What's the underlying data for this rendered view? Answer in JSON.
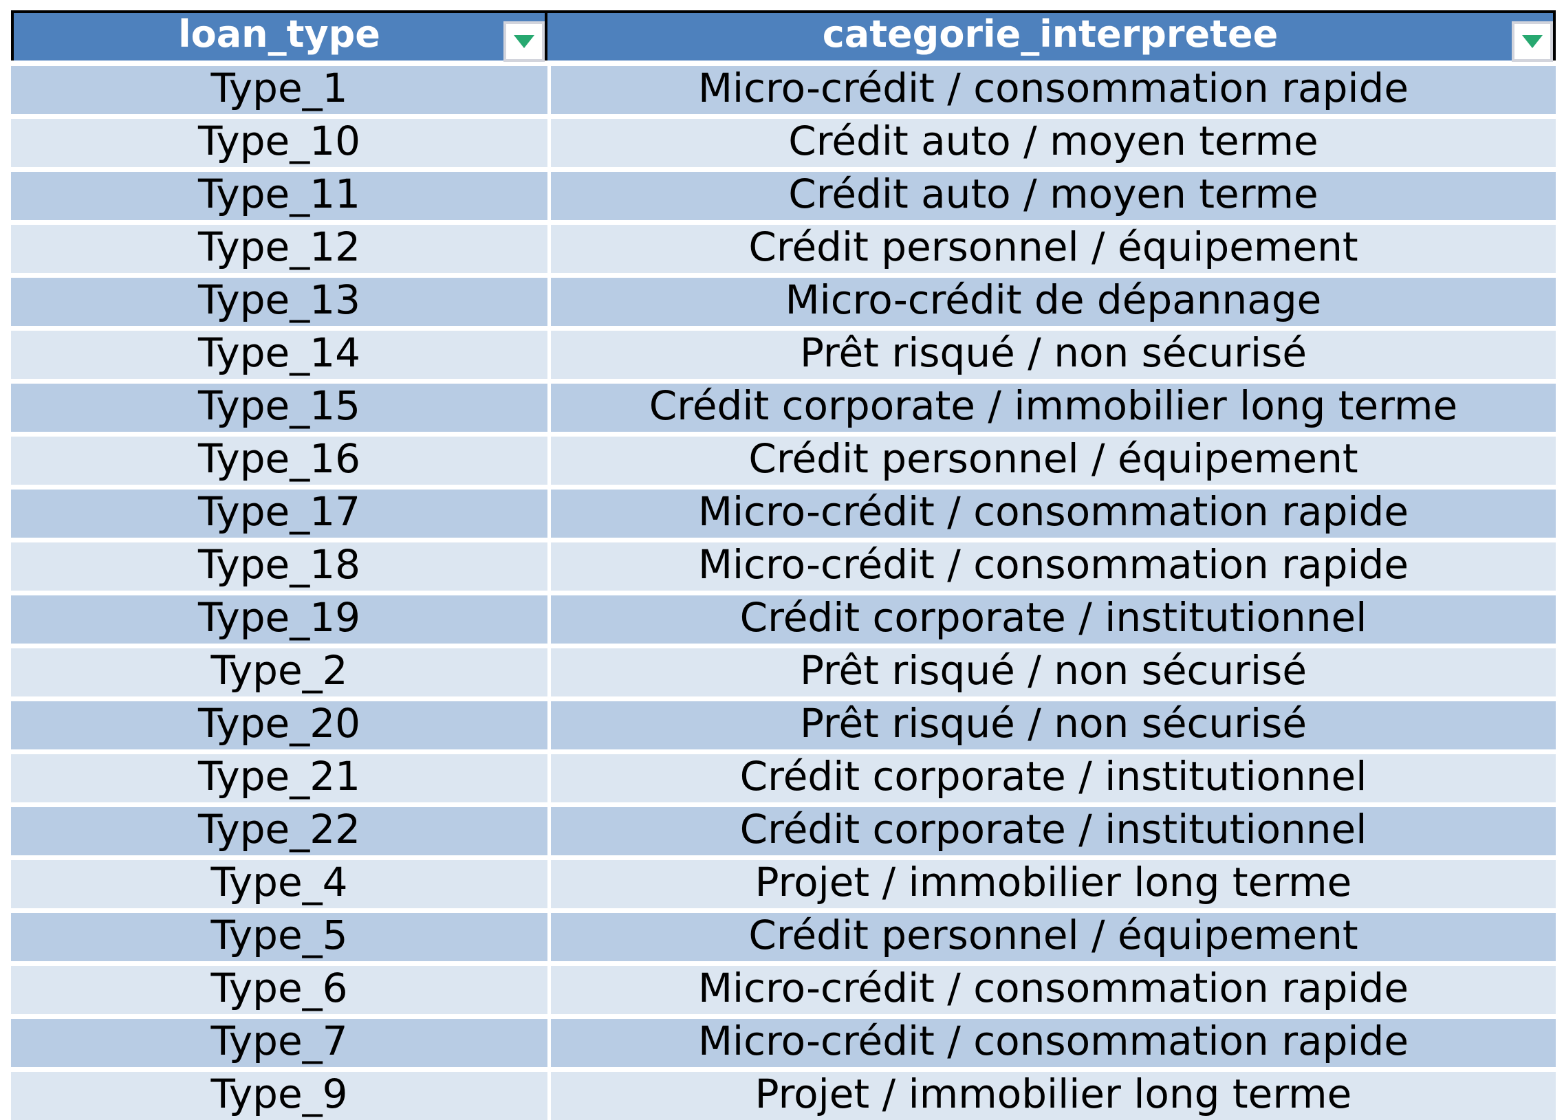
{
  "colors": {
    "header_bg": "#4E81BD",
    "header_text": "#FFFFFF",
    "row_odd": "#B8CCE4",
    "row_even": "#DCE6F1",
    "cell_text": "#000000",
    "filter_arrow_green": "#27A870",
    "table_border": "#000000"
  },
  "table": {
    "headers": [
      {
        "label": "loan_type",
        "filter_icon": "filter-dropdown-icon"
      },
      {
        "label": "categorie_interpretee",
        "filter_icon": "filter-dropdown-icon"
      }
    ],
    "rows": [
      {
        "loan_type": "Type_1",
        "categorie_interpretee": "Micro-crédit / consommation rapide"
      },
      {
        "loan_type": "Type_10",
        "categorie_interpretee": "Crédit auto / moyen terme"
      },
      {
        "loan_type": "Type_11",
        "categorie_interpretee": "Crédit auto / moyen terme"
      },
      {
        "loan_type": "Type_12",
        "categorie_interpretee": "Crédit personnel / équipement"
      },
      {
        "loan_type": "Type_13",
        "categorie_interpretee": "Micro-crédit de dépannage"
      },
      {
        "loan_type": "Type_14",
        "categorie_interpretee": "Prêt risqué / non sécurisé"
      },
      {
        "loan_type": "Type_15",
        "categorie_interpretee": "Crédit corporate / immobilier long terme"
      },
      {
        "loan_type": "Type_16",
        "categorie_interpretee": "Crédit personnel / équipement"
      },
      {
        "loan_type": "Type_17",
        "categorie_interpretee": "Micro-crédit / consommation rapide"
      },
      {
        "loan_type": "Type_18",
        "categorie_interpretee": "Micro-crédit / consommation rapide"
      },
      {
        "loan_type": "Type_19",
        "categorie_interpretee": "Crédit corporate / institutionnel"
      },
      {
        "loan_type": "Type_2",
        "categorie_interpretee": "Prêt risqué / non sécurisé"
      },
      {
        "loan_type": "Type_20",
        "categorie_interpretee": "Prêt risqué / non sécurisé"
      },
      {
        "loan_type": "Type_21",
        "categorie_interpretee": "Crédit corporate / institutionnel"
      },
      {
        "loan_type": "Type_22",
        "categorie_interpretee": "Crédit corporate / institutionnel"
      },
      {
        "loan_type": "Type_4",
        "categorie_interpretee": "Projet / immobilier long terme"
      },
      {
        "loan_type": "Type_5",
        "categorie_interpretee": "Crédit personnel / équipement"
      },
      {
        "loan_type": "Type_6",
        "categorie_interpretee": "Micro-crédit / consommation rapide"
      },
      {
        "loan_type": "Type_7",
        "categorie_interpretee": "Micro-crédit / consommation rapide"
      },
      {
        "loan_type": "Type_9",
        "categorie_interpretee": "Projet / immobilier long terme"
      }
    ]
  }
}
